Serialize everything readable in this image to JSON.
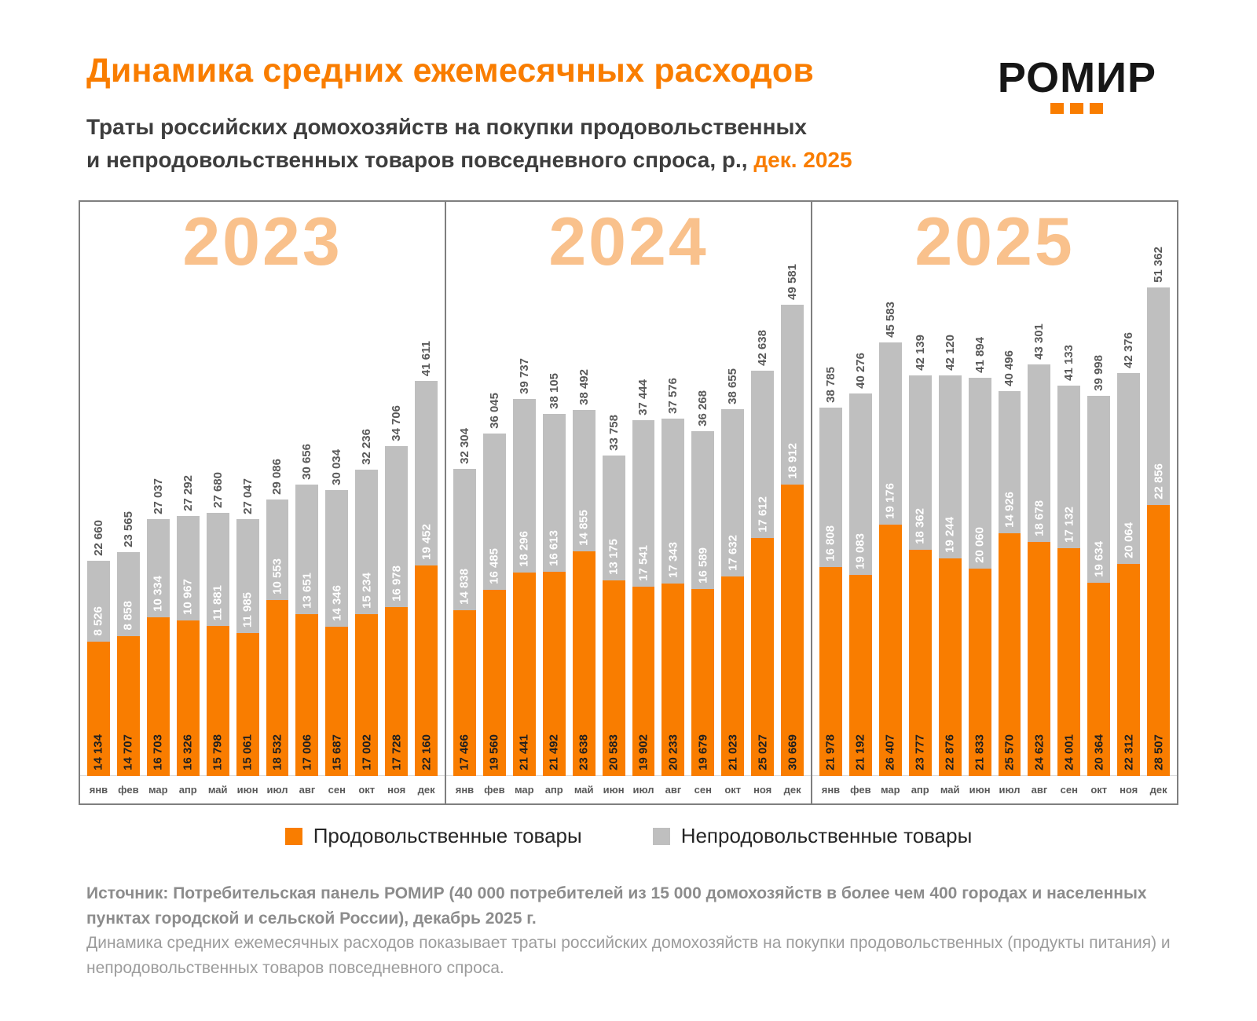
{
  "header": {
    "title": "Динамика средних ежемесячных расходов",
    "subtitle_line1": "Траты российских домохозяйств на покупки продовольственных",
    "subtitle_line2": "и непродовольственных товаров повседневного спроса, р.,",
    "subtitle_highlight": "дек. 2025",
    "logo_text": "РОМИР"
  },
  "legend": {
    "food_label": "Продовольственные товары",
    "nonfood_label": "Непродовольственные товары"
  },
  "footer": {
    "source_bold": "Источник: Потребительская панель РОМИР (40 000 потребителей из 15 000 домохозяйств в более чем 400 городах и населенных пунктах городской и сельской России), декабрь 2025 г.",
    "description": "Динамика средних ежемесячных расходов показывает траты российских домохозяйств на покупки продовольственных (продукты питания) и непродовольственных товаров повседневного спроса."
  },
  "colors": {
    "accent_orange": "#F97D00",
    "year_watermark": "#F9C18C",
    "bar_gray": "#BFBFBF",
    "total_label_gray": "#595959"
  },
  "chart_data": {
    "type": "bar",
    "stacked": true,
    "unit": "р.",
    "legend_position": "bottom",
    "months": [
      "янв",
      "фев",
      "мар",
      "апр",
      "май",
      "июн",
      "июл",
      "авг",
      "сен",
      "окт",
      "ноя",
      "дек"
    ],
    "series_names": {
      "food": "Продовольственные товары",
      "nonfood": "Непродовольственные товары"
    },
    "panels": [
      {
        "year": "2023",
        "food": [
          14134,
          14707,
          16703,
          16326,
          15798,
          15061,
          18532,
          17006,
          15687,
          17002,
          17728,
          22160
        ],
        "nonfood": [
          8526,
          8858,
          10334,
          10967,
          11881,
          11985,
          10553,
          13651,
          14346,
          15234,
          16978,
          19452
        ],
        "totals": [
          22660,
          23565,
          27037,
          27292,
          27680,
          27047,
          29086,
          30656,
          30034,
          32236,
          34706,
          41611
        ]
      },
      {
        "year": "2024",
        "food": [
          17466,
          19560,
          21441,
          21492,
          23638,
          20583,
          19902,
          20233,
          19679,
          21023,
          25027,
          30669
        ],
        "nonfood": [
          14838,
          16485,
          18296,
          16613,
          14855,
          13175,
          17541,
          17343,
          16589,
          17632,
          17612,
          18912
        ],
        "totals": [
          32304,
          36045,
          39737,
          38105,
          38492,
          33758,
          37444,
          37576,
          36268,
          38655,
          42638,
          49581
        ]
      },
      {
        "year": "2025",
        "food": [
          21978,
          21192,
          26407,
          23777,
          22876,
          21833,
          25570,
          24623,
          24001,
          20364,
          22312,
          28507
        ],
        "nonfood": [
          16808,
          19083,
          19176,
          18362,
          19244,
          20060,
          14926,
          18678,
          17132,
          19634,
          20064,
          22856
        ],
        "totals": [
          38785,
          40276,
          45583,
          42139,
          42120,
          41894,
          40496,
          43301,
          41133,
          39998,
          42376,
          51362
        ]
      }
    ]
  }
}
